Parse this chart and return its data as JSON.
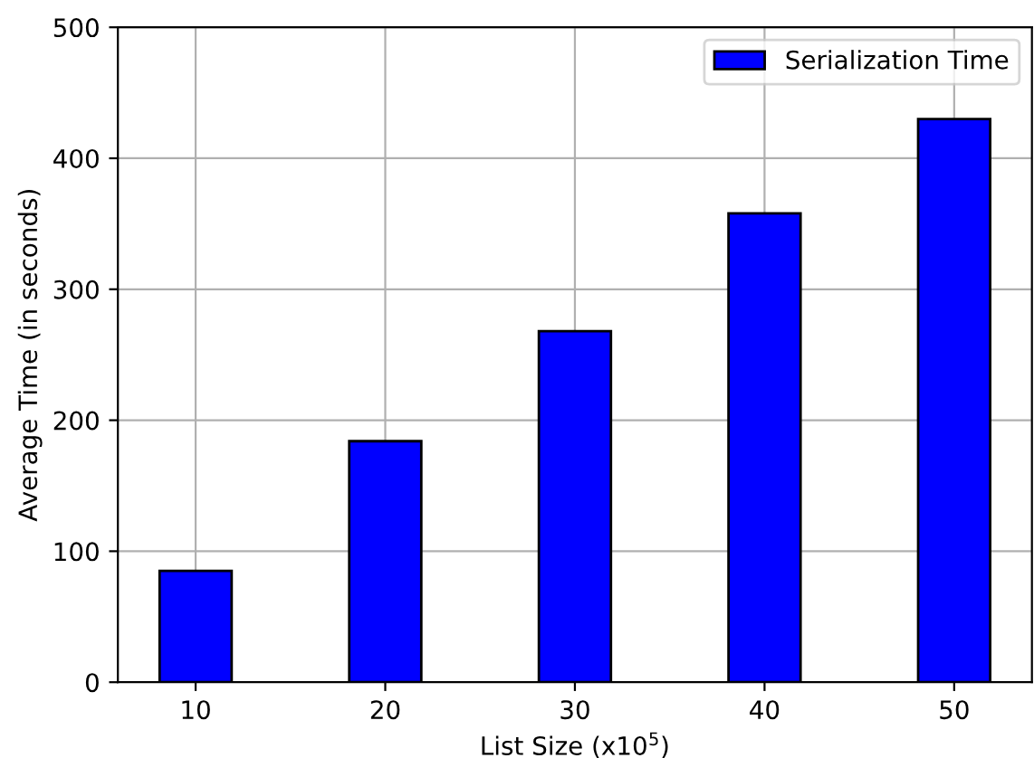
{
  "chart_data": {
    "type": "bar",
    "xlabel": "List Size (x10$^{5}$)",
    "ylabel": "Average Time (in seconds)",
    "categories": [
      "10",
      "20",
      "30",
      "40",
      "50"
    ],
    "series": [
      {
        "name": "Serialization Time",
        "color": "#0000ff",
        "values": [
          85,
          184,
          268,
          358,
          430
        ]
      }
    ],
    "ylim": [
      0,
      500
    ],
    "yticks": [
      0,
      100,
      200,
      300,
      400,
      500
    ],
    "grid": true,
    "legend": "top right"
  }
}
